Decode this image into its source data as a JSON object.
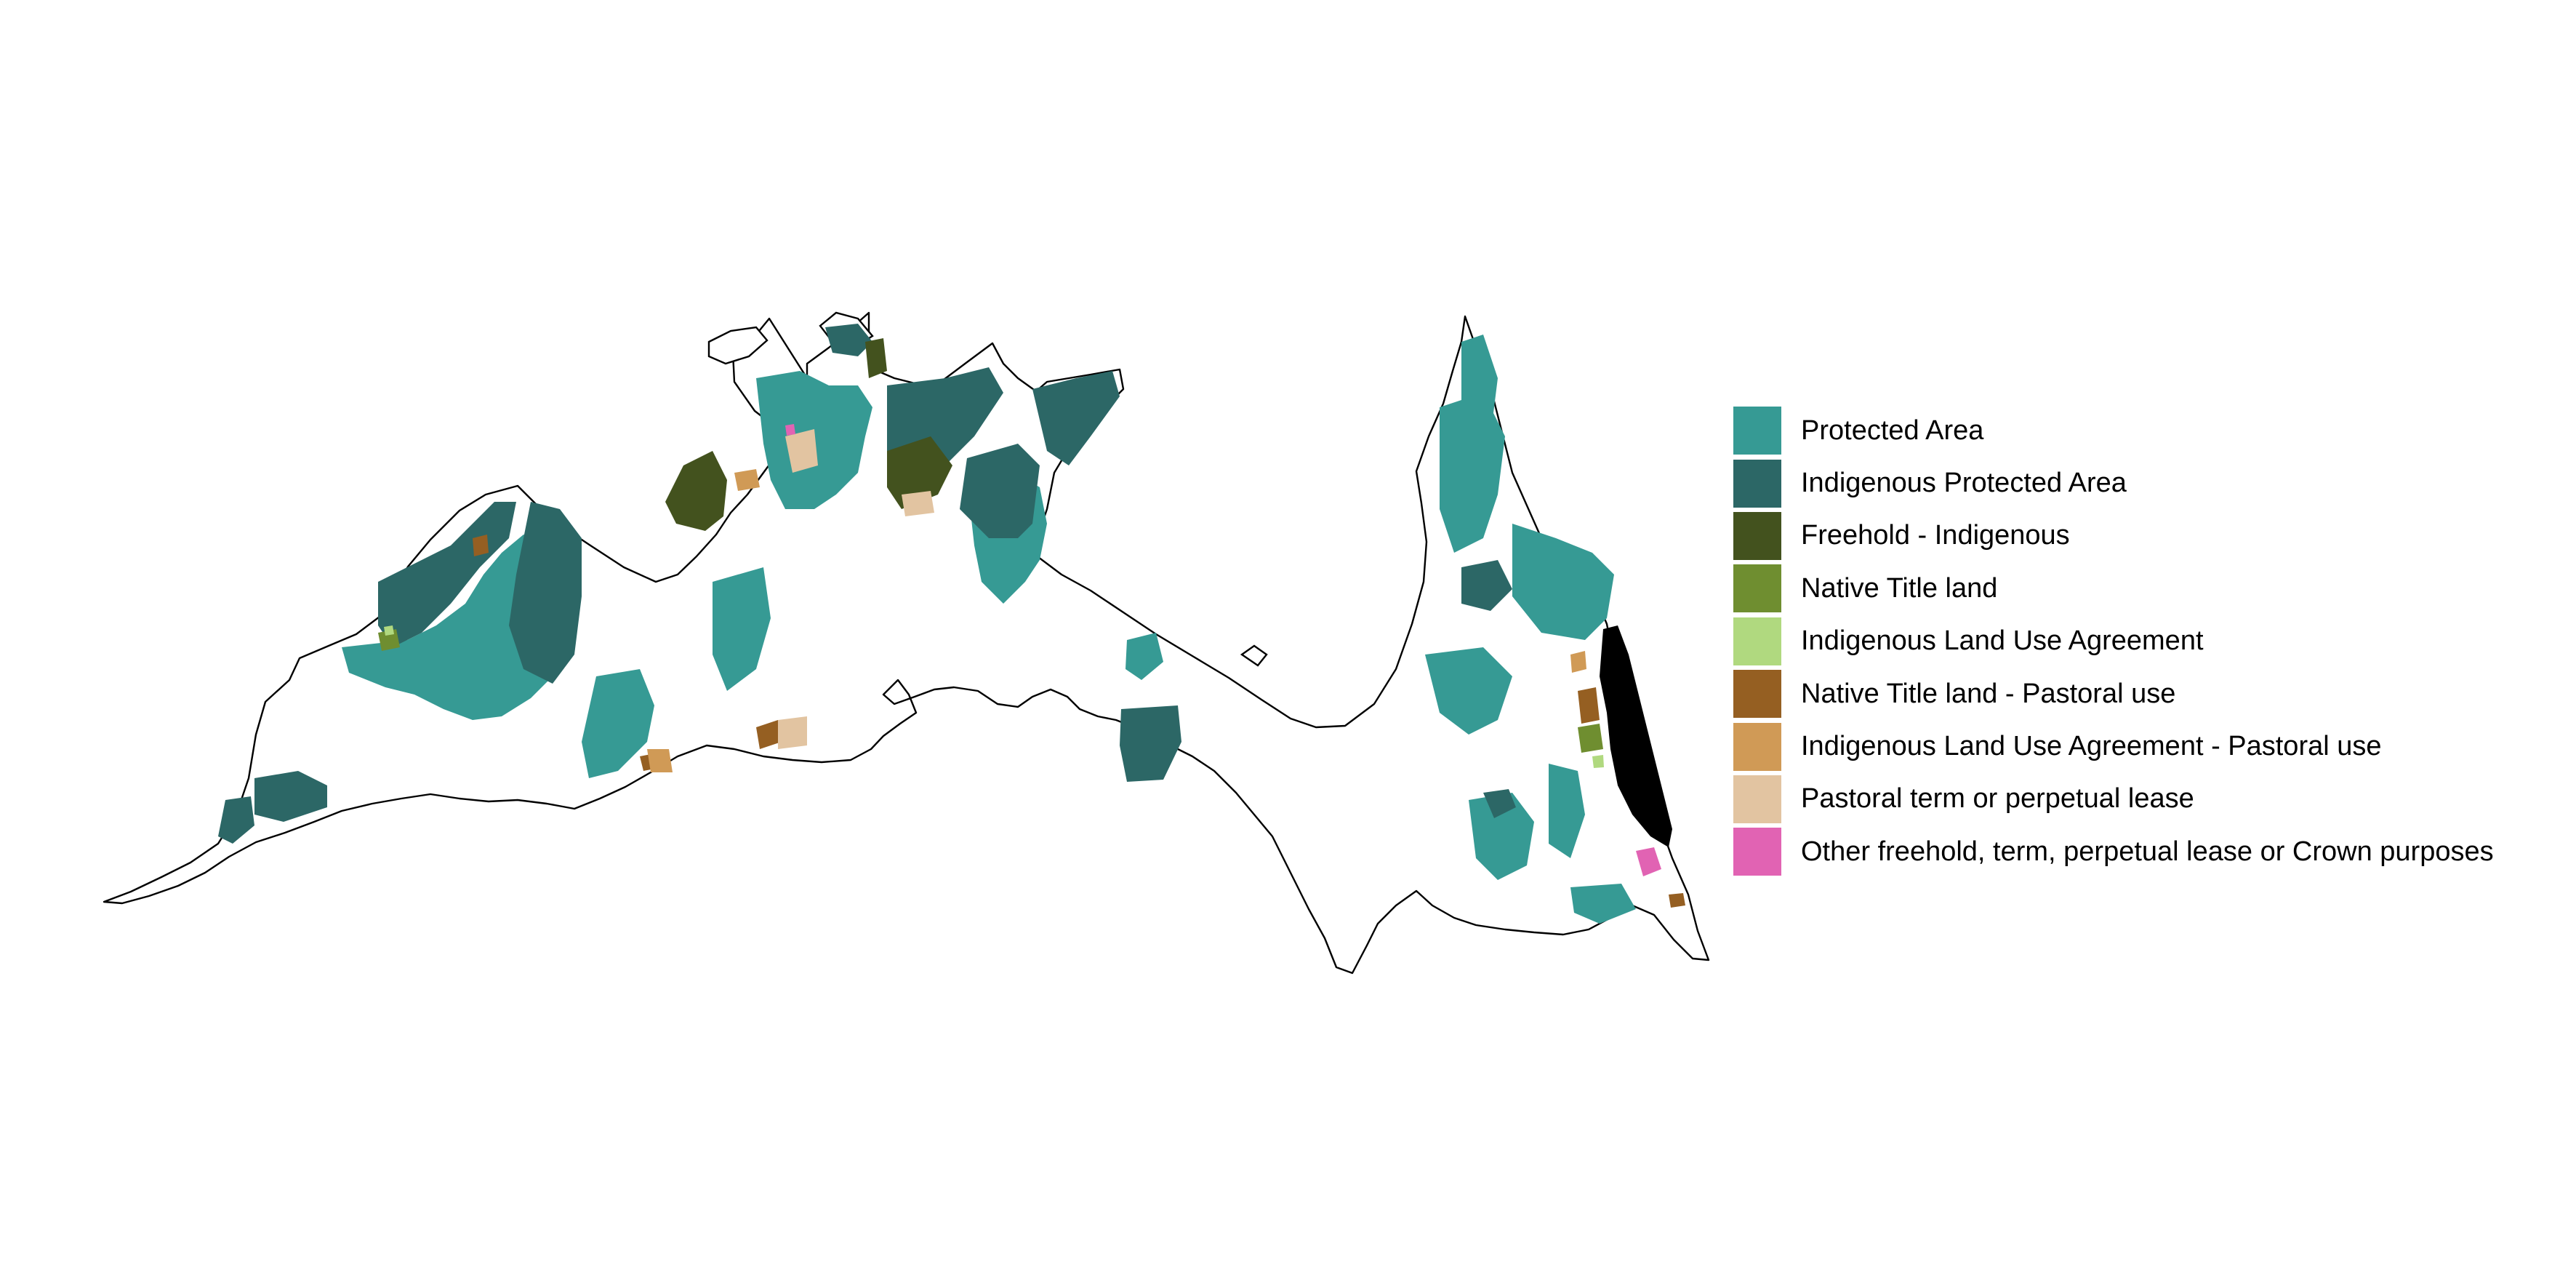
{
  "map": {
    "type": "categorical choropleth (hexagon grid)",
    "background": "#ffffff",
    "outline_color": "#000000",
    "masked_area_color": "#000000"
  },
  "legend": {
    "items": [
      {
        "label": "Protected Area",
        "color": "#369a94"
      },
      {
        "label": "Indigenous Protected Area",
        "color": "#2c6766"
      },
      {
        "label": "Freehold - Indigenous",
        "color": "#43521e"
      },
      {
        "label": "Native Title land",
        "color": "#6f8e30"
      },
      {
        "label": "Indigenous Land Use Agreement",
        "color": "#b0d97f"
      },
      {
        "label": "Native Title land - Pastoral use",
        "color": "#955f22"
      },
      {
        "label": "Indigenous Land Use Agreement - Pastoral use",
        "color": "#d09a56"
      },
      {
        "label": "Pastoral term or perpetual lease",
        "color": "#e2c4a1"
      },
      {
        "label": "Other freehold, term, perpetual lease or Crown purposes",
        "color": "#e163b3"
      }
    ]
  }
}
